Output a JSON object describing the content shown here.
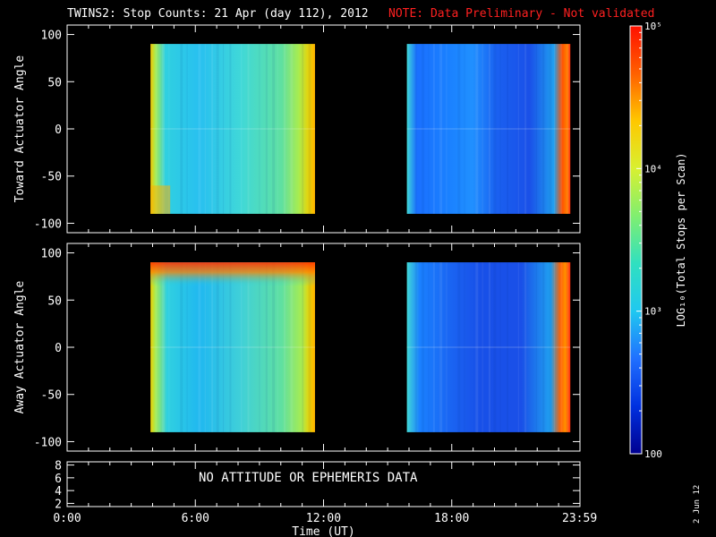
{
  "title": "TWINS2: Stop Counts: 21 Apr (day 112), 2012",
  "note": "NOTE: Data Preliminary - Not validated",
  "no_data_message": "NO ATTITUDE OR EPHEMERIS DATA",
  "date_stamp": "2 Jun 12",
  "colors": {
    "background": "#000000",
    "axes": "#ffffff",
    "note": "#ff2020"
  },
  "chart_data": [
    {
      "type": "heatmap",
      "name": "toward",
      "ylabel": "Toward Actuator Angle",
      "ylim": [
        -110,
        110
      ],
      "yticks": [
        100,
        50,
        0,
        -50,
        -100
      ],
      "data_angle_range": [
        -90,
        90
      ],
      "xlim_hours": [
        0,
        24
      ],
      "segments": [
        {
          "start_hour": 3.9,
          "end_hour": 11.6
        },
        {
          "start_hour": 15.9,
          "end_hour": 23.55
        }
      ]
    },
    {
      "type": "heatmap",
      "name": "away",
      "ylabel": "Away Actuator Angle",
      "ylim": [
        -110,
        110
      ],
      "yticks": [
        100,
        50,
        0,
        -50,
        -100
      ],
      "data_angle_range": [
        -90,
        90
      ],
      "xlim_hours": [
        0,
        24
      ],
      "segments": [
        {
          "start_hour": 3.9,
          "end_hour": 11.6
        },
        {
          "start_hour": 15.9,
          "end_hour": 23.55
        }
      ]
    },
    {
      "type": "line",
      "name": "ephemeris",
      "ylim": [
        1.5,
        8.5
      ],
      "yticks": [
        8,
        6,
        4,
        2
      ],
      "xlim_hours": [
        0,
        24
      ]
    }
  ],
  "x_axis": {
    "label": "Time (UT)",
    "ticks": [
      {
        "hour": 0,
        "label": "0:00"
      },
      {
        "hour": 6,
        "label": "6:00"
      },
      {
        "hour": 12,
        "label": "12:00"
      },
      {
        "hour": 18,
        "label": "18:00"
      },
      {
        "hour": 23.983,
        "label": "23:59"
      }
    ]
  },
  "colorbar": {
    "label": "LOG₁₀(Total Stops per Scan)",
    "scale": "log",
    "range": [
      100,
      100000
    ],
    "ticks": [
      {
        "value": 100000,
        "label": "10⁵"
      },
      {
        "value": 10000,
        "label": "10⁴"
      },
      {
        "value": 1000,
        "label": "10³"
      },
      {
        "value": 100,
        "label": "100"
      }
    ],
    "colormap": [
      "#000090",
      "#0030e0",
      "#2070ff",
      "#20c8f0",
      "#30e0c0",
      "#80ef70",
      "#d8f030",
      "#ffc800",
      "#ff6000",
      "#ff1000"
    ]
  }
}
